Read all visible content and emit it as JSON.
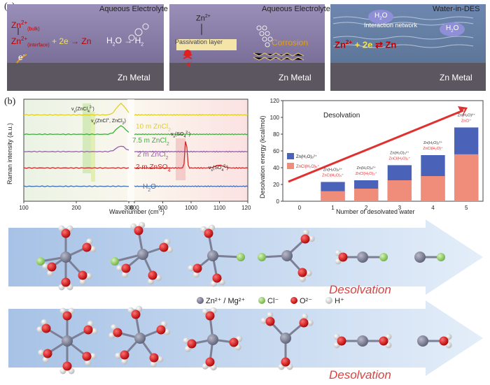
{
  "panel_labels": {
    "a": "(a)",
    "b": "(b)"
  },
  "panel_a": {
    "p1": {
      "header": "Aqueous Electrolyte",
      "zn_bulk": "Zn",
      "zn_bulk_sup": "2+",
      "zn_bulk_sub": "(bulk)",
      "zn_int": "Zn",
      "zn_int_sup": "2+",
      "zn_int_sub": "(interface)",
      "reaction_mid": "+ 2e",
      "reaction_end": "→ Zn",
      "h2o": "H",
      "h2o_sub": "2",
      "h2o_tail": "O → H",
      "h2_sub": "2",
      "electron": "e",
      "electron_sup": "-",
      "metal": "Zn Metal"
    },
    "p2": {
      "header": "Aqueous Electrolyte",
      "zn": "Zn",
      "zn_sup": "2+",
      "passivation": "Passivation layer",
      "corrosion": "Corrosion",
      "electron": "e",
      "electron_sup": "-",
      "metal": "Zn Metal"
    },
    "p3": {
      "header": "Water-in-DES",
      "h2o_a": "H",
      "h2o_a_sub": "2",
      "h2o_a_tail": "O",
      "network": "Interaction network",
      "h2o_b": "H",
      "h2o_b_sub": "2",
      "h2o_b_tail": "O",
      "reaction_a": "Zn",
      "reaction_a_sup": "2+",
      "reaction_b": "+ 2e",
      "reaction_c": "⇄ Zn",
      "metal": "Zn Metal"
    }
  },
  "chart_data": [
    {
      "type": "line",
      "xlabel": "Wavenumber (cm",
      "xlabel_sup": "-1",
      "xlabel_tail": ")",
      "ylabel": "Raman intensity (a.u.)",
      "xlim": [
        100,
        1200
      ],
      "xticks": [
        100,
        200,
        300,
        800,
        900,
        1000,
        1100,
        1200
      ],
      "series": [
        {
          "name": "10 m ZnCl",
          "sub": "2",
          "color": "#e0d020",
          "baseline": 0.86
        },
        {
          "name": "7.5 m ZnCl",
          "sub": "2",
          "color": "#3cae3c",
          "baseline": 0.67
        },
        {
          "name": "2 m ZnCl",
          "sub": "2",
          "color": "#9a5db0",
          "baseline": 0.5
        },
        {
          "name": "2 m ZnSO",
          "sub": "4",
          "color": "#cc2a2a",
          "baseline": 0.34
        },
        {
          "name": "H",
          "sub": "2",
          "tail": "O",
          "color": "#3e6fb5",
          "baseline": 0.16
        }
      ],
      "annotations": {
        "zncl4": "ν",
        "zncl4_sub": "s",
        "zncl4_tail": "(ZnCl",
        "zncl4_sub2": "4",
        "zncl4_sup": "2-",
        "zncl4_end": ")",
        "zncl": "ν",
        "zncl_sub": "s",
        "zncl_tail": "(ZnCl",
        "zncl_sup": "+",
        "zncl_mid": ", ZnCl",
        "zncl_sub2": "2",
        "zncl_end": ")",
        "so4": "ν",
        "so4_sub": "s",
        "so4_tail": "(SO",
        "so4_sub2": "4",
        "so4_sup": "2-",
        "so4_end": ")",
        "so4b": "ν",
        "so4b_sub": "s",
        "so4b_tail": "(SO",
        "so4b_sub2": "4",
        "so4b_sup": "2-",
        "so4b_end": ")"
      }
    },
    {
      "type": "bar",
      "title": "Desolvation",
      "xlabel": "Number of desolvated water",
      "ylabel": "Desolvation energy (kcal/mol)",
      "categories": [
        "0",
        "1",
        "2",
        "3",
        "4",
        "5"
      ],
      "ylim": [
        0,
        120
      ],
      "yticks": [
        0,
        20,
        40,
        60,
        80,
        100,
        120
      ],
      "series": [
        {
          "name": "Zn(H₂O)₆²⁺",
          "color": "#4a63b8",
          "values": [
            0,
            23,
            25,
            43,
            55,
            88
          ]
        },
        {
          "name": "ZnCl(H₂O)₅⁺",
          "color": "#f08c7a",
          "values": [
            0,
            12,
            15,
            25,
            30,
            56
          ]
        }
      ],
      "bar_labels_top": [
        "Zn(H₂O)₅²⁺",
        "Zn(H₂O)₄²⁺",
        "Zn(H₂O)₃²⁺",
        "Zn(H₂O)₂²⁺",
        "Zn(H₂O)²⁺"
      ],
      "bar_labels_bottom": [
        "ZnCl(H₂O)₄⁺",
        "ZnCl(H₂O)₃⁺",
        "ZnCl(H₂O)₂⁺",
        "ZnCl(H₂O)⁺",
        "ZnCl⁺"
      ]
    }
  ],
  "molecules": {
    "legend": [
      {
        "label": "Zn²⁺ / Mg²⁺",
        "color": "#7d7f94"
      },
      {
        "label": "Cl⁻",
        "color": "#8fd16a"
      },
      {
        "label": "O²⁻",
        "color": "#d92020"
      },
      {
        "label": "H⁺",
        "color": "#e8e8e8"
      }
    ],
    "arrow_text_top": "Desolvation",
    "arrow_text_bottom": "Desolvation"
  }
}
